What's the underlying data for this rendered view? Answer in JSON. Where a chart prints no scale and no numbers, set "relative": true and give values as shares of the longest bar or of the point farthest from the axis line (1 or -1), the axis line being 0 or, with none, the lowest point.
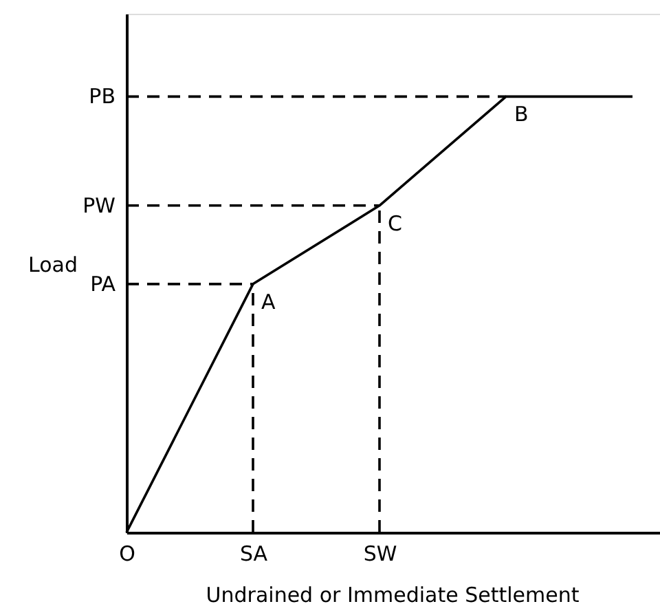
{
  "chart_data": {
    "type": "line",
    "relative": true,
    "xlabel": "Undrained or Immediate Settlement",
    "ylabel": "Load",
    "categories": [
      "O",
      "SA",
      "SW",
      null,
      null
    ],
    "series": [
      {
        "color": "#000000",
        "line_style": "solid",
        "values": [
          0,
          0.57,
          0.75,
          1.0,
          1.0
        ]
      },
      {
        "color": "#000000",
        "line_style": "dashed",
        "values": [
          0.57,
          0.57,
          null,
          null,
          null
        ]
      },
      {
        "color": "#000000",
        "line_style": "dashed",
        "values": [
          0.75,
          0.75,
          0.75,
          null,
          null
        ]
      },
      {
        "color": "#000000",
        "line_style": "dashed",
        "values": [
          1.0,
          1.0,
          1.0,
          1.0,
          null
        ]
      }
    ],
    "ref_lines": [
      {
        "axis": "x",
        "value": "SA",
        "line_style": "dashed",
        "color": "#000000"
      },
      {
        "axis": "x",
        "value": "SW",
        "line_style": "dashed",
        "color": "#000000"
      }
    ],
    "annotations": [
      {
        "text": "PA",
        "x": "O",
        "y": 0.57
      },
      {
        "text": "PW",
        "x": "O",
        "y": 0.75
      },
      {
        "text": "PB",
        "x": "O",
        "y": 1.0
      },
      {
        "text": "A",
        "x": "SA",
        "y": 0.57
      },
      {
        "text": "C",
        "x": "SW",
        "y": 0.75
      },
      {
        "text": "B",
        "y": 1.0
      }
    ]
  }
}
